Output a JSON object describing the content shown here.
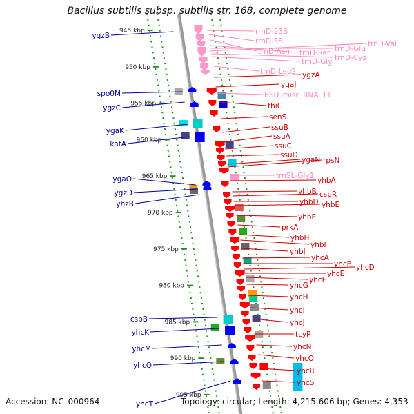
{
  "header": {
    "title": "Bacillus subtilis subsp. subtilis str. 168, complete genome"
  },
  "footer": {
    "accession": "Accession: NC_000964",
    "topology": "Topology: circular; Length: 4,215,606 bp; Genes: 4,353"
  },
  "colors": {
    "forward_gene": "#ff0000",
    "reverse_gene": "#0000ff",
    "rna_gene": "#ff99cc",
    "forward_label": "#cc0000",
    "reverse_label": "#000099",
    "rna_label": "#ff88bb",
    "backbone": "#999999",
    "ticks": "#1f8f1f"
  },
  "map": {
    "kbp_labels": [
      {
        "kbp": 945,
        "label": "945 kbp"
      },
      {
        "kbp": 950,
        "label": "950 kbp"
      },
      {
        "kbp": 955,
        "label": "955 kbp"
      },
      {
        "kbp": 960,
        "label": "960 kbp"
      },
      {
        "kbp": 965,
        "label": "965 kbp"
      },
      {
        "kbp": 970,
        "label": "970 kbp"
      },
      {
        "kbp": 975,
        "label": "975 kbp"
      },
      {
        "kbp": 980,
        "label": "980 kbp"
      },
      {
        "kbp": 985,
        "label": "985 kbp"
      },
      {
        "kbp": 990,
        "label": "990 kbp"
      },
      {
        "kbp": 995,
        "label": "995 kbp"
      }
    ],
    "reverse_genes": [
      {
        "name": "ygzB",
        "kbp": 945.4
      },
      {
        "name": "spo0M",
        "kbp": 954.2
      },
      {
        "name": "ygzC",
        "kbp": 955.7
      },
      {
        "name": "ygaK",
        "kbp": 958.8
      },
      {
        "name": "katA",
        "kbp": 960.5
      },
      {
        "name": "ygaO",
        "kbp": 965.5
      },
      {
        "name": "ygzD",
        "kbp": 967.2
      },
      {
        "name": "yhzB",
        "kbp": 968.6
      },
      {
        "name": "cspB",
        "kbp": 985.0
      },
      {
        "name": "yhcK",
        "kbp": 986.8
      },
      {
        "name": "yhcM",
        "kbp": 989.2
      },
      {
        "name": "yhcQ",
        "kbp": 990.9
      },
      {
        "name": "yhcT",
        "kbp": 996.8
      }
    ],
    "rna_genes": [
      {
        "name": "rrnD-23S"
      },
      {
        "name": "rrnD-5S"
      },
      {
        "name": "trnD-Asn"
      },
      {
        "name": "trnD-Ser"
      },
      {
        "name": "trnD-Glu"
      },
      {
        "name": "trnD-Val"
      },
      {
        "name": "trnD-Cys"
      },
      {
        "name": "trnD-Gly"
      },
      {
        "name": "trnD-Leu2"
      },
      {
        "name": "BSU_misc_RNA_11"
      },
      {
        "name": "trnSL-Gly1"
      }
    ],
    "forward_genes": [
      {
        "name": "ygzA"
      },
      {
        "name": "ygaJ"
      },
      {
        "name": "thiC"
      },
      {
        "name": "senS"
      },
      {
        "name": "ssuB"
      },
      {
        "name": "ssuA"
      },
      {
        "name": "ssuC"
      },
      {
        "name": "ssuD"
      },
      {
        "name": "ygaN"
      },
      {
        "name": "rpsN"
      },
      {
        "name": "yhbA"
      },
      {
        "name": "yhbB"
      },
      {
        "name": "cspR"
      },
      {
        "name": "yhbD"
      },
      {
        "name": "yhbE"
      },
      {
        "name": "yhbF"
      },
      {
        "name": "prkA"
      },
      {
        "name": "yhbH"
      },
      {
        "name": "yhbI"
      },
      {
        "name": "yhbJ"
      },
      {
        "name": "yhcA"
      },
      {
        "name": "yhcB"
      },
      {
        "name": "yhcD"
      },
      {
        "name": "yhcE"
      },
      {
        "name": "yhcF"
      },
      {
        "name": "yhcG"
      },
      {
        "name": "yhcH"
      },
      {
        "name": "yhcI"
      },
      {
        "name": "yhcJ"
      },
      {
        "name": "tcyP"
      },
      {
        "name": "yhcN"
      },
      {
        "name": "yhcO"
      },
      {
        "name": "yhcR"
      },
      {
        "name": "yhcS"
      }
    ]
  }
}
